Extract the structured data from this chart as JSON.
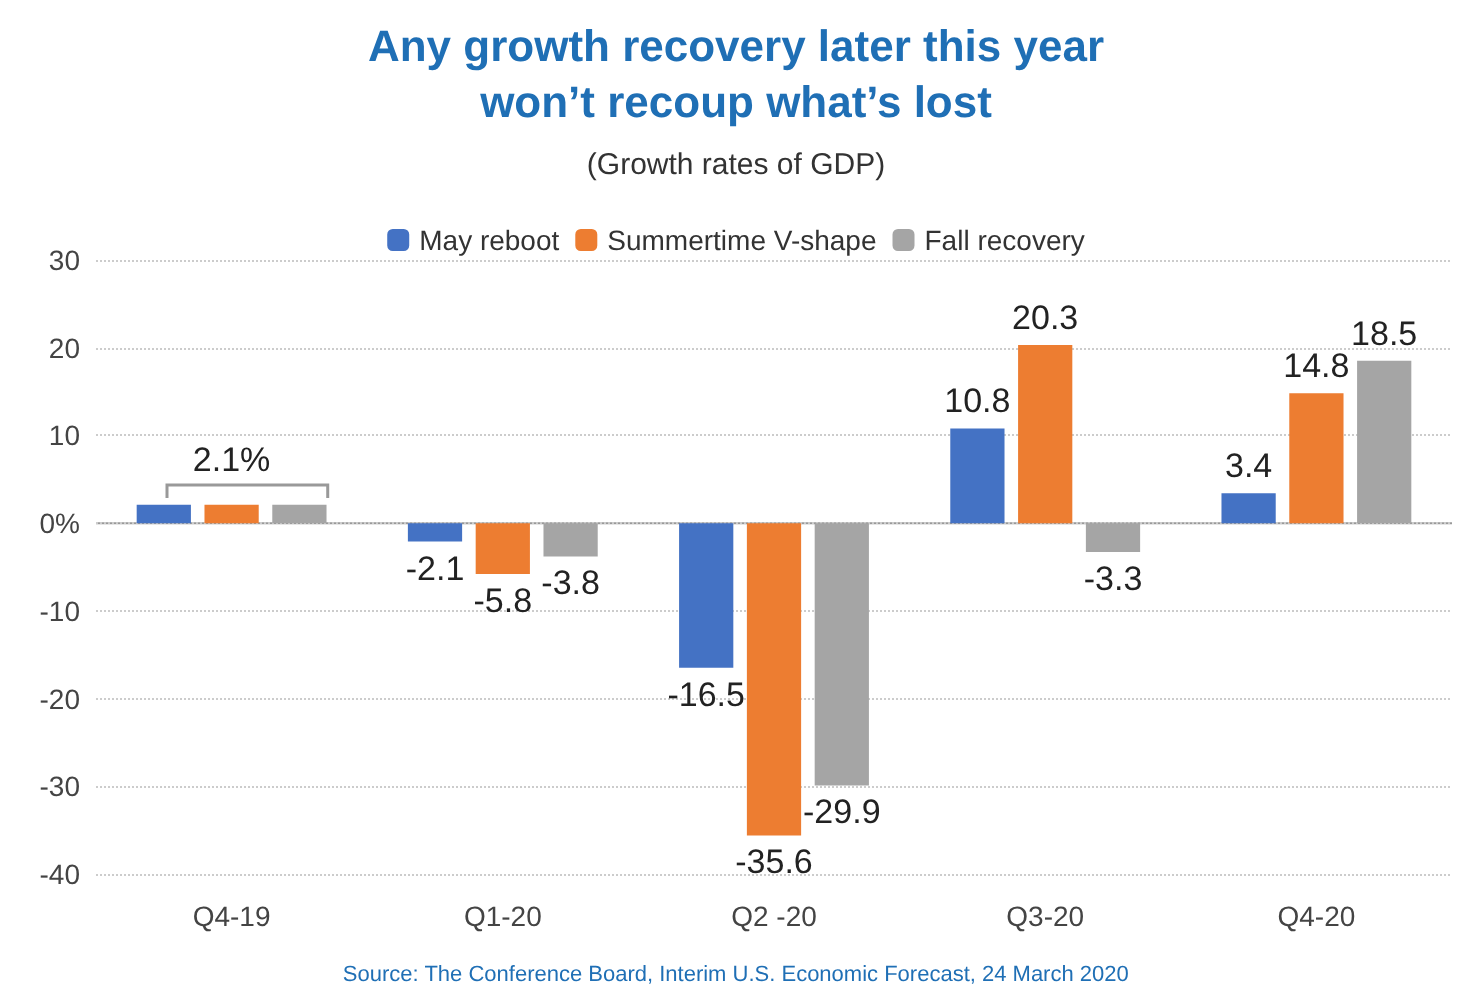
{
  "chart_data": {
    "type": "bar",
    "title": "Any growth recovery later this year\nwon’t recoup what’s lost",
    "subtitle": "(Growth rates of GDP)",
    "categories": [
      "Q4-19",
      "Q1-20",
      "Q2 -20",
      "Q3-20",
      "Q4-20"
    ],
    "series": [
      {
        "name": "May reboot",
        "color": "#4472c4",
        "values": [
          2.1,
          -2.1,
          -16.5,
          10.8,
          3.4
        ],
        "value_labels": [
          null,
          "-2.1",
          "-16.5",
          "10.8",
          "3.4"
        ]
      },
      {
        "name": "Summertime V-shape",
        "color": "#ed7d31",
        "values": [
          2.1,
          -5.8,
          -35.6,
          20.3,
          14.8
        ],
        "value_labels": [
          "2.1%",
          "-5.8",
          "-35.6",
          "20.3",
          "14.8"
        ]
      },
      {
        "name": "Fall recovery",
        "color": "#a5a5a5",
        "values": [
          2.1,
          -3.8,
          -29.9,
          -3.3,
          18.5
        ],
        "value_labels": [
          null,
          "-3.8",
          "-29.9",
          "-3.3",
          "18.5"
        ]
      }
    ],
    "ylim": [
      -40,
      30
    ],
    "yticks": [
      -40,
      -30,
      -20,
      -10,
      {
        "value": 0,
        "label": "0%"
      },
      10,
      20,
      30
    ],
    "grid": "y",
    "legend": "top",
    "annotations": [
      "Source: The Conference Board, Interim U.S. Economic Forecast, 24 March 2020"
    ]
  }
}
